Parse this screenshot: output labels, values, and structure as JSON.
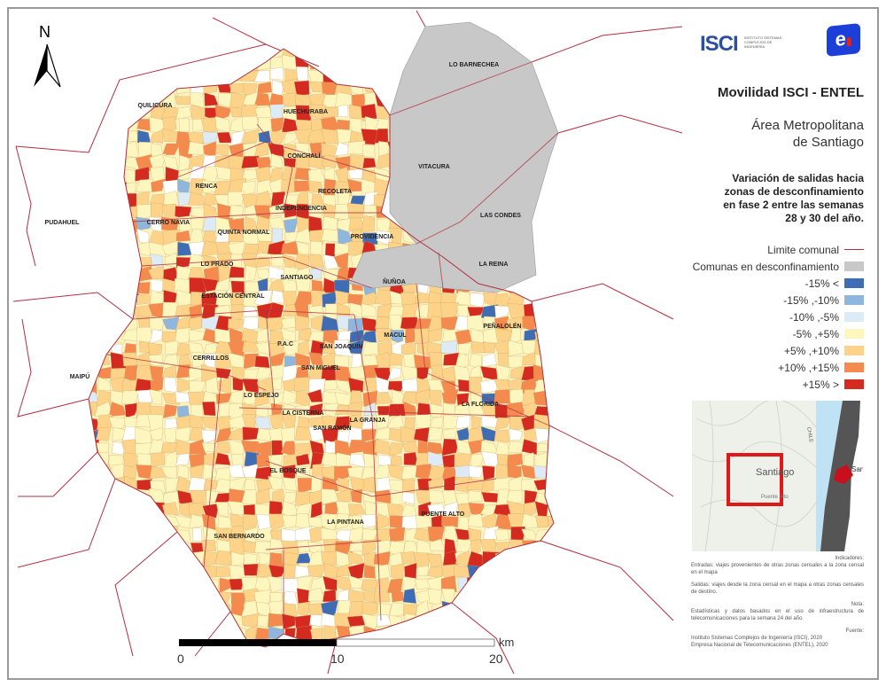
{
  "north_arrow": {
    "label": "N"
  },
  "logos": {
    "isci": "ISCI",
    "isci_sub": "INSTITUTO SISTEMAS COMPLEJOS DE INGENIERÍA",
    "entel": "e"
  },
  "title": "Movilidad ISCI - ENTEL",
  "subtitle_line1": "Área Metropolitana",
  "subtitle_line2": "de Santiago",
  "description": [
    "Variación de salidas hacia",
    "zonas de desconfinamiento",
    "en fase 2 entre las semanas",
    "28 y 30 del año."
  ],
  "legend": {
    "boundary": {
      "label": "Limite comunal",
      "color": "#b03040"
    },
    "deconfined": {
      "label": "Comunas en desconfinamiento",
      "color": "#c8c8c8"
    },
    "classes": [
      {
        "label": "-15% <",
        "color": "#3e6db5"
      },
      {
        "label": "-15% ,-10%",
        "color": "#8fb6dc"
      },
      {
        "label": "-10% ,-5%",
        "color": "#dcebf5"
      },
      {
        "label": "-5% ,+5%",
        "color": "#fdf7bf"
      },
      {
        "label": "+5% ,+10%",
        "color": "#fcd389"
      },
      {
        "label": "+10% ,+15%",
        "color": "#f48a4e"
      },
      {
        "label": "+15% >",
        "color": "#d42a20"
      }
    ]
  },
  "communes": [
    {
      "name": "LO BARNECHEA",
      "deconfined": true
    },
    {
      "name": "HUECHURABA"
    },
    {
      "name": "QUILICURA"
    },
    {
      "name": "VITACURA",
      "deconfined": true
    },
    {
      "name": "CONCHALÍ"
    },
    {
      "name": "RECOLETA"
    },
    {
      "name": "RENCA"
    },
    {
      "name": "INDEPENDENCIA"
    },
    {
      "name": "PUDAHUEL"
    },
    {
      "name": "CERRO NAVIA"
    },
    {
      "name": "QUINTA NORMAL"
    },
    {
      "name": "LAS CONDES",
      "deconfined": true
    },
    {
      "name": "PROVIDENCIA"
    },
    {
      "name": "LO PRADO"
    },
    {
      "name": "LA REINA",
      "deconfined": true
    },
    {
      "name": "SANTIAGO"
    },
    {
      "name": "ÑUÑOA",
      "deconfined": true
    },
    {
      "name": "ESTACIÓN CENTRAL"
    },
    {
      "name": "PEÑALOLÉN"
    },
    {
      "name": "MACUL"
    },
    {
      "name": "P.A.C"
    },
    {
      "name": "SAN JOAQUÍN"
    },
    {
      "name": "CERRILLOS"
    },
    {
      "name": "SAN MIGUEL"
    },
    {
      "name": "MAIPÚ"
    },
    {
      "name": "LO ESPEJO"
    },
    {
      "name": "LA FLORIDA"
    },
    {
      "name": "LA CISTERNA"
    },
    {
      "name": "LA GRANJA"
    },
    {
      "name": "SAN RAMÓN"
    },
    {
      "name": "EL BOSQUE"
    },
    {
      "name": "PUENTE ALTO"
    },
    {
      "name": "LA PINTANA"
    },
    {
      "name": "SAN BERNARDO"
    }
  ],
  "scale_bar": {
    "unit": "km",
    "ticks": [
      "0",
      "10",
      "20"
    ]
  },
  "inset": {
    "labels": [
      "Santiago",
      "Puente Alto",
      "CHILE",
      "Santi"
    ]
  },
  "notes": {
    "indicators_title": "Indicadores:",
    "entradas": "Entradas: viajes provenientes de otras zonas censales a la zona censal en el mapa",
    "salidas": "Salidas: viajes desde la zona censal en el mapa a otras zonas censales de destino.",
    "nota_title": "Nota:",
    "nota": "Estadísticas y datos basados en el uso de infraestructura de telecomunicaciones para la semana 24 del año",
    "fuente_title": "Fuente:",
    "fuente1": "Instituto Sistemas Complejos de Ingeniería (ISCI), 2020",
    "fuente2": "Empresa Nacional de Telecomunicaciones (ENTEL), 2020"
  }
}
